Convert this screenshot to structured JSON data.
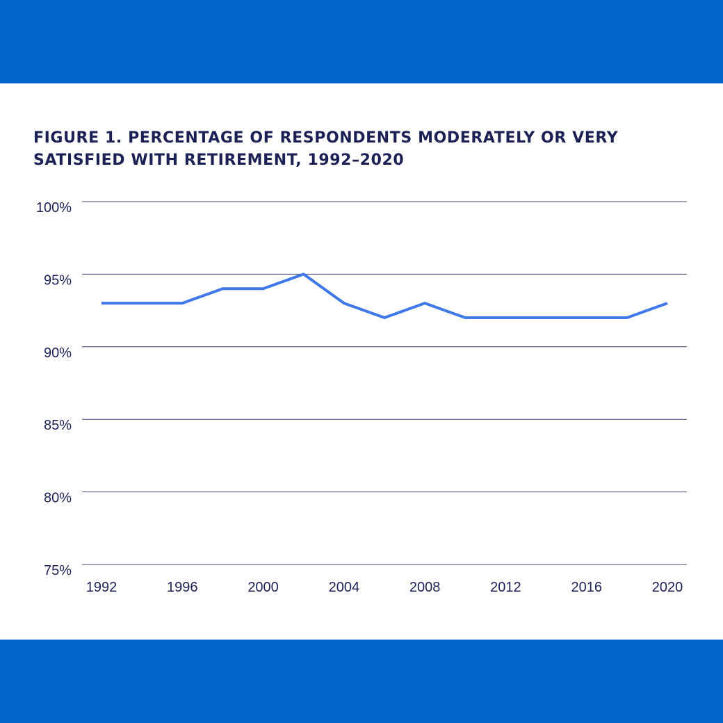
{
  "colors": {
    "band": "#0066cc",
    "title": "#1b2155",
    "grid": "#1b2155",
    "line": "#3f78e8",
    "text": "#1b2155"
  },
  "chart_data": {
    "type": "line",
    "title_line1": "FIGURE 1. PERCENTAGE OF RESPONDENTS MODERATELY OR VERY",
    "title_line2": "SATISFIED WITH RETIREMENT, 1992–2020",
    "xlabel": "",
    "ylabel": "",
    "xlim": [
      1992,
      2020
    ],
    "ylim": [
      75,
      100
    ],
    "x_ticks": [
      1992,
      1996,
      2000,
      2004,
      2008,
      2012,
      2016,
      2020
    ],
    "x_tick_labels": [
      "1992",
      "1996",
      "2000",
      "2004",
      "2008",
      "2012",
      "2016",
      "2020"
    ],
    "y_ticks": [
      75,
      80,
      85,
      90,
      95,
      100
    ],
    "y_tick_labels": [
      "75%",
      "80%",
      "85%",
      "90%",
      "95%",
      "100%"
    ],
    "grid": true,
    "series": [
      {
        "name": "Moderately or very satisfied",
        "x": [
          1992,
          1994,
          1996,
          1998,
          2000,
          2002,
          2004,
          2006,
          2008,
          2010,
          2012,
          2014,
          2016,
          2018,
          2020
        ],
        "values": [
          93,
          93,
          93,
          94,
          94,
          95,
          93,
          92,
          93,
          92,
          92,
          92,
          92,
          92,
          93
        ]
      }
    ]
  }
}
